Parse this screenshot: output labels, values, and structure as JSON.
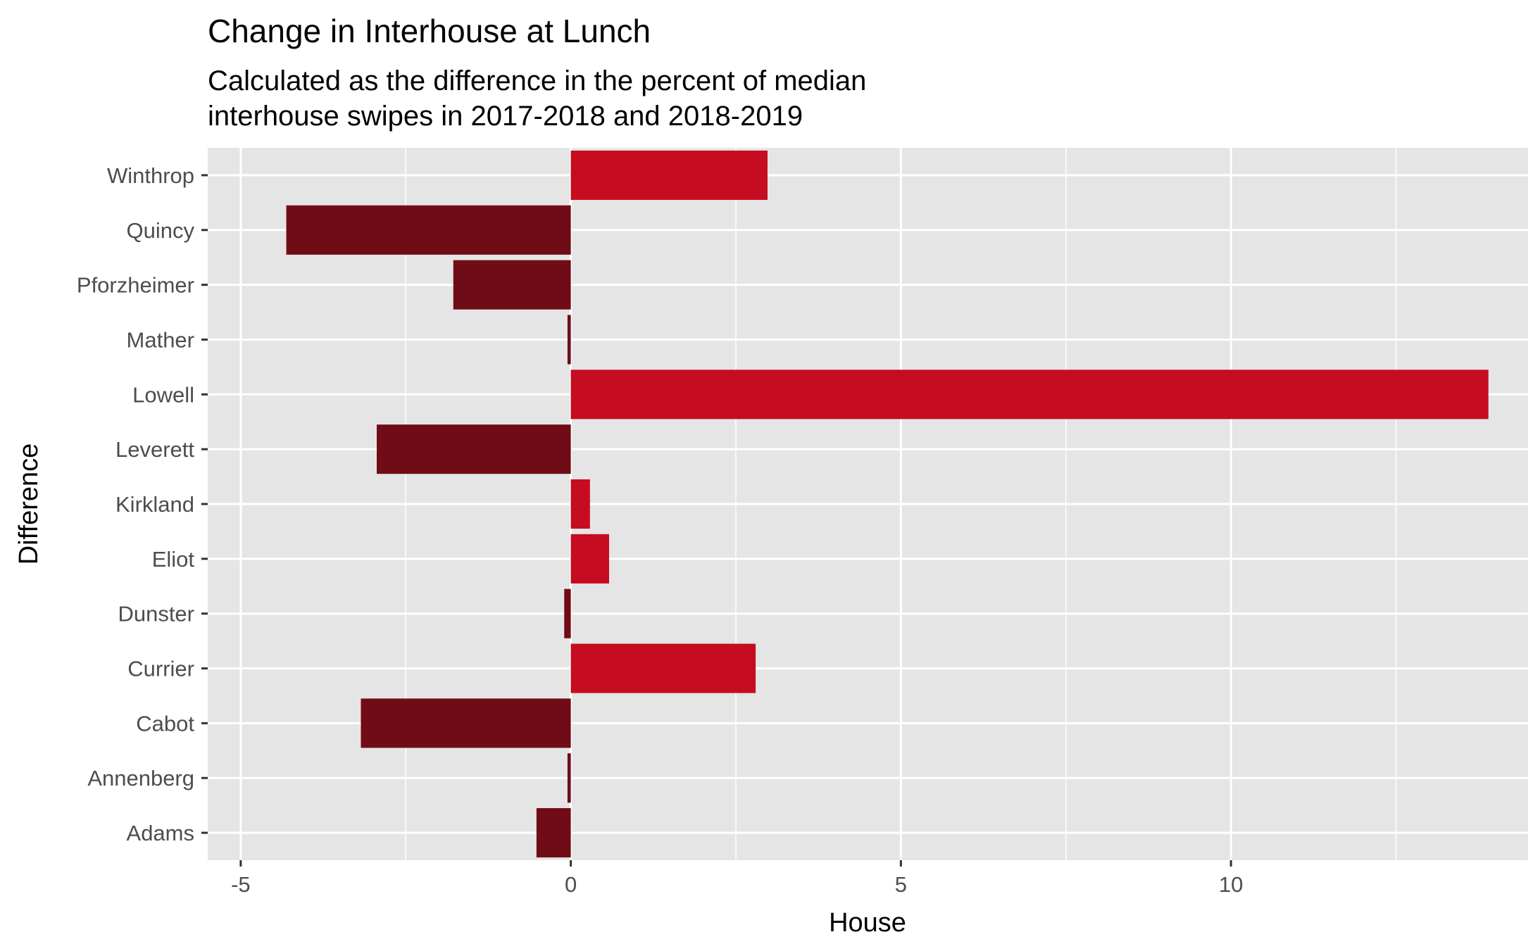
{
  "chart_data": {
    "type": "bar",
    "orientation": "horizontal",
    "title": "Change in Interhouse at Lunch",
    "subtitle_lines": [
      "Calculated as the difference in the percent of median",
      "interhouse swipes in 2017-2018 and 2018-2019"
    ],
    "xlabel": "House",
    "ylabel": "Difference",
    "categories": [
      "Adams",
      "Annenberg",
      "Cabot",
      "Currier",
      "Dunster",
      "Eliot",
      "Kirkland",
      "Leverett",
      "Lowell",
      "Mather",
      "Pforzheimer",
      "Quincy",
      "Winthrop"
    ],
    "values": [
      -0.52,
      -0.05,
      -3.18,
      2.8,
      -0.1,
      0.58,
      0.29,
      -2.94,
      13.9,
      -0.05,
      -1.78,
      -4.31,
      2.98
    ],
    "xlim": [
      -5.5,
      14.5
    ],
    "xticks": [
      -5,
      0,
      5,
      10
    ],
    "xtick_labels": [
      "-5",
      "0",
      "5",
      "10"
    ],
    "grid": true,
    "legend": "none",
    "colors": {
      "positive": "#C60C20",
      "negative": "#700C15",
      "panel_background": "#E5E5E5",
      "grid_line": "#FFFFFF"
    }
  }
}
